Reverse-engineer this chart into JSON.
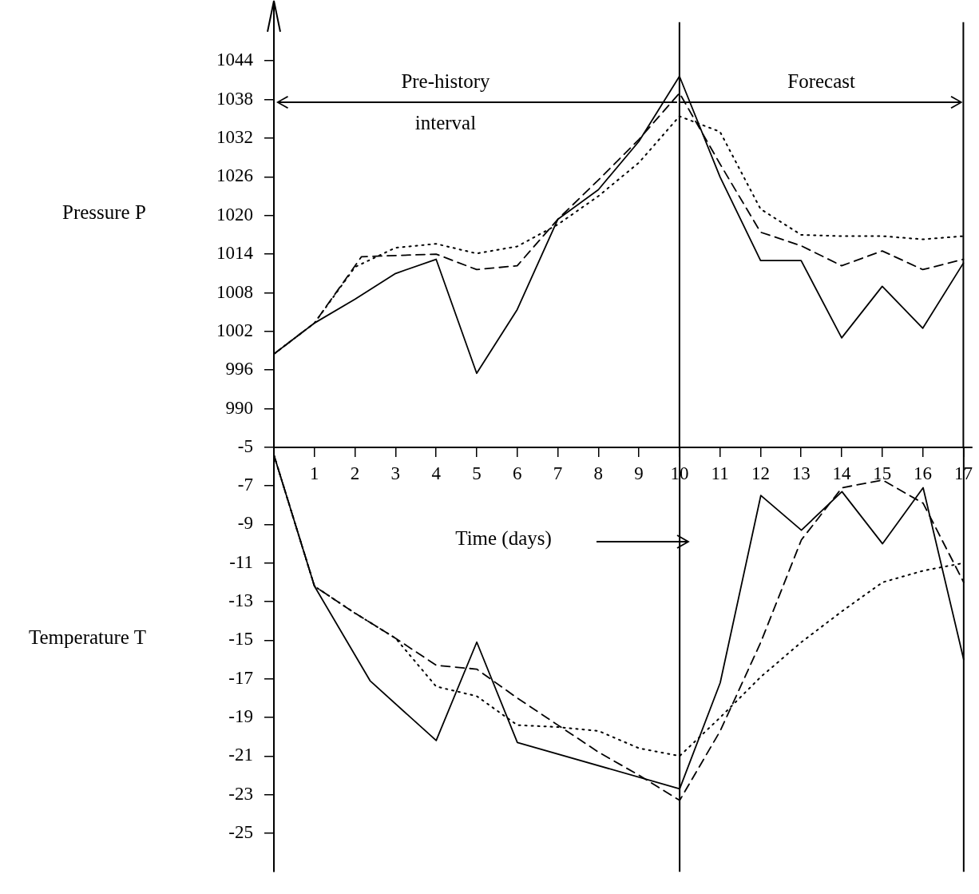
{
  "chart_data": [
    {
      "type": "line",
      "ylabel": "Pressure P",
      "x": [
        0,
        1,
        2,
        3,
        4,
        5,
        6,
        7,
        8,
        9,
        10,
        11,
        12,
        13,
        14,
        15,
        16,
        17
      ],
      "xlim": [
        0,
        17.2
      ],
      "xticks": [
        {
          "value": 0,
          "label": null
        },
        1,
        2,
        3,
        4,
        5,
        6,
        7,
        8,
        9,
        10,
        11,
        12,
        13,
        14,
        15,
        16,
        17
      ],
      "ylim": [
        984,
        1050
      ],
      "yticks": [
        990,
        996,
        1002,
        1008,
        1014,
        1020,
        1026,
        1032,
        1038,
        1044
      ],
      "ref_lines": [
        {
          "axis": "x",
          "value": 10
        },
        {
          "axis": "x",
          "value": 17
        }
      ],
      "annotations": [
        "Pre-history interval",
        "Forecast"
      ],
      "series": [
        {
          "color": "#000000",
          "line_style": "solid",
          "values": [
            998.5,
            1003.3,
            1007,
            1011,
            1013.2,
            995.5,
            1005.4,
            1019.4,
            1024,
            1031.5,
            1041.6,
            1026,
            1013,
            1013,
            1001,
            1009,
            1002.5,
            1012.6
          ]
        },
        {
          "color": "#000000",
          "line_style": "dashed",
          "x": [
            0,
            1,
            2.16,
            4,
            5,
            6,
            7,
            8,
            9,
            10,
            11,
            12,
            13,
            14,
            15,
            16,
            17
          ],
          "values": [
            998.5,
            1003.3,
            1013.6,
            1014,
            1011.6,
            1012.2,
            1019.4,
            1025.5,
            1031.8,
            1039,
            1028,
            1017.4,
            1015.3,
            1012.2,
            1014.5,
            1011.6,
            1013.2
          ]
        },
        {
          "color": "#000000",
          "line_style": "dotted",
          "values": [
            998.5,
            1003.3,
            1012,
            1015,
            1015.6,
            1014.1,
            1015.2,
            1018.6,
            1023,
            1028.2,
            1035.4,
            1033,
            1021,
            1017,
            1016.8,
            1016.8,
            1016.3,
            1016.8
          ]
        }
      ]
    },
    {
      "type": "line",
      "xlabel": "Time (days)",
      "ylabel": "Temperature T",
      "x": [
        0,
        1,
        2,
        3,
        4,
        5,
        6,
        7,
        8,
        9,
        10,
        11,
        12,
        13,
        14,
        15,
        16,
        17
      ],
      "xlim": [
        0,
        17.2
      ],
      "ylim": [
        -27,
        -5
      ],
      "yticks": [
        -25,
        -23,
        -21,
        -19,
        -17,
        -15,
        -13,
        -11,
        -9,
        -7,
        -5
      ],
      "tick_labels": "y",
      "ref_lines": [
        {
          "axis": "x",
          "value": 10
        },
        {
          "axis": "x",
          "value": 17
        }
      ],
      "series": [
        {
          "color": "#000000",
          "line_style": "solid",
          "x": [
            0,
            1,
            2.37,
            4,
            5,
            6,
            10,
            11,
            12,
            13,
            14,
            15,
            16,
            17
          ],
          "values": [
            -5.4,
            -12.2,
            -17.1,
            -20.2,
            -15.1,
            -20.3,
            -22.7,
            -17.2,
            -7.5,
            -9.3,
            -7.3,
            -10,
            -7.1,
            -16
          ]
        },
        {
          "color": "#000000",
          "line_style": "dashed",
          "values": [
            -5.4,
            -12.2,
            -13.6,
            -14.9,
            -16.3,
            -16.5,
            -18,
            -19.4,
            -20.8,
            -22,
            -23.3,
            -19.7,
            -15.1,
            -9.8,
            -7.1,
            -6.7,
            -7.9,
            -12
          ]
        },
        {
          "color": "#000000",
          "line_style": "dotted",
          "values": [
            -5.4,
            -12.2,
            -13.6,
            -14.9,
            -17.4,
            -17.9,
            -19.4,
            -19.5,
            -19.7,
            -20.6,
            -21,
            -19,
            -16.9,
            -15.1,
            -13.5,
            -12,
            -11.4,
            -11
          ]
        }
      ]
    }
  ]
}
